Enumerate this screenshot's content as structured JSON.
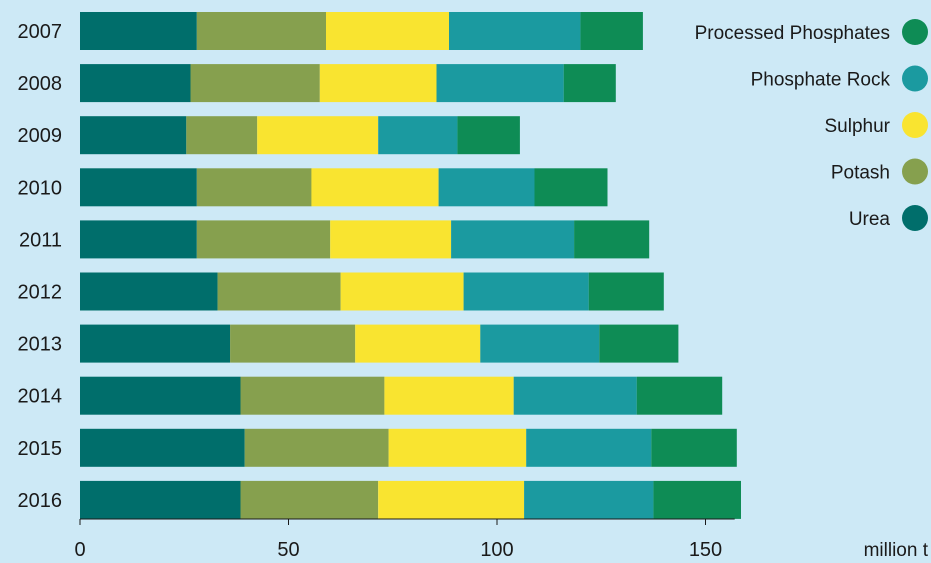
{
  "chart_data": {
    "type": "bar",
    "orientation": "horizontal",
    "stacked": true,
    "categories": [
      "2007",
      "2008",
      "2009",
      "2010",
      "2011",
      "2012",
      "2013",
      "2014",
      "2015",
      "2016"
    ],
    "series": [
      {
        "name": "Urea",
        "color": "#006e6b",
        "values": [
          28.0,
          26.5,
          25.5,
          28.0,
          28.0,
          33.0,
          36.0,
          38.5,
          39.5,
          38.5
        ]
      },
      {
        "name": "Potash",
        "color": "#86a04e",
        "values": [
          31.0,
          31.0,
          17.0,
          27.5,
          32.0,
          29.5,
          30.0,
          34.5,
          34.5,
          33.0
        ]
      },
      {
        "name": "Sulphur",
        "color": "#f9e430",
        "values": [
          29.5,
          28.0,
          29.0,
          30.5,
          29.0,
          29.5,
          30.0,
          31.0,
          33.0,
          35.0
        ]
      },
      {
        "name": "Phosphate Rock",
        "color": "#1b9aa0",
        "values": [
          31.5,
          30.5,
          19.0,
          23.0,
          29.5,
          30.0,
          28.5,
          29.5,
          30.0,
          31.0
        ]
      },
      {
        "name": "Processed Phosphates",
        "color": "#0e8c55",
        "values": [
          15.0,
          12.5,
          15.0,
          17.5,
          18.0,
          18.0,
          19.0,
          20.5,
          20.5,
          21.0
        ]
      }
    ],
    "xlim": [
      0,
      157
    ],
    "xticks": [
      0,
      50,
      100,
      150
    ],
    "xlabel": "million t",
    "legend": {
      "position": "top-right",
      "order": [
        "Processed Phosphates",
        "Phosphate Rock",
        "Sulphur",
        "Potash",
        "Urea"
      ]
    },
    "grid": false
  }
}
